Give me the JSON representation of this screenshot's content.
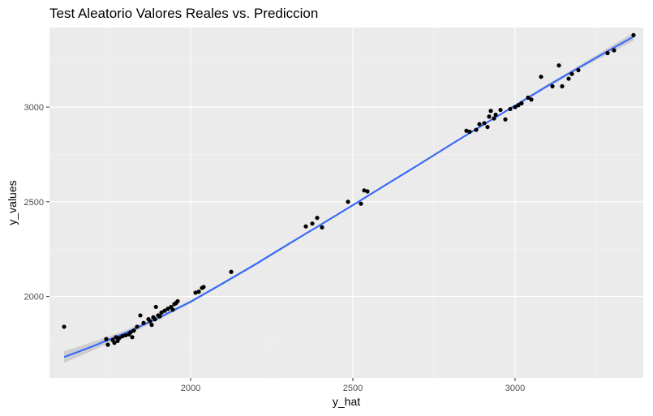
{
  "chart_data": {
    "type": "scatter",
    "title": "Test Aleatorio Valores Reales vs. Prediccion",
    "xlabel": "y_hat",
    "ylabel": "y_values",
    "xlim": [
      1565,
      3395
    ],
    "ylim": [
      1570,
      3420
    ],
    "x_ticks": [
      2000,
      2500,
      3000
    ],
    "y_ticks": [
      2000,
      2500,
      3000
    ],
    "grid": true,
    "legend": "none",
    "colors": {
      "panel": "#ebebeb",
      "grid_major": "#ffffff",
      "grid_minor": "#f4f4f4",
      "points": "#000000",
      "smooth_line": "#3366ff",
      "confidence_band": "#c8c8c8",
      "tick_mark": "#333333"
    },
    "points": [
      [
        1610,
        1840
      ],
      [
        1740,
        1775
      ],
      [
        1745,
        1745
      ],
      [
        1760,
        1770
      ],
      [
        1765,
        1755
      ],
      [
        1770,
        1785
      ],
      [
        1775,
        1765
      ],
      [
        1780,
        1780
      ],
      [
        1790,
        1790
      ],
      [
        1800,
        1795
      ],
      [
        1810,
        1800
      ],
      [
        1815,
        1810
      ],
      [
        1820,
        1785
      ],
      [
        1825,
        1820
      ],
      [
        1835,
        1840
      ],
      [
        1845,
        1900
      ],
      [
        1855,
        1860
      ],
      [
        1870,
        1880
      ],
      [
        1875,
        1870
      ],
      [
        1880,
        1850
      ],
      [
        1885,
        1890
      ],
      [
        1890,
        1880
      ],
      [
        1893,
        1945
      ],
      [
        1900,
        1900
      ],
      [
        1905,
        1895
      ],
      [
        1910,
        1915
      ],
      [
        1920,
        1925
      ],
      [
        1930,
        1935
      ],
      [
        1940,
        1945
      ],
      [
        1945,
        1930
      ],
      [
        1950,
        1960
      ],
      [
        1955,
        1965
      ],
      [
        1960,
        1975
      ],
      [
        2015,
        2020
      ],
      [
        2025,
        2025
      ],
      [
        2035,
        2045
      ],
      [
        2040,
        2050
      ],
      [
        2125,
        2130
      ],
      [
        2355,
        2370
      ],
      [
        2375,
        2385
      ],
      [
        2390,
        2415
      ],
      [
        2405,
        2365
      ],
      [
        2485,
        2500
      ],
      [
        2525,
        2490
      ],
      [
        2535,
        2560
      ],
      [
        2545,
        2555
      ],
      [
        2850,
        2875
      ],
      [
        2860,
        2870
      ],
      [
        2880,
        2880
      ],
      [
        2890,
        2910
      ],
      [
        2905,
        2915
      ],
      [
        2915,
        2895
      ],
      [
        2920,
        2950
      ],
      [
        2925,
        2980
      ],
      [
        2935,
        2940
      ],
      [
        2940,
        2960
      ],
      [
        2955,
        2985
      ],
      [
        2970,
        2935
      ],
      [
        2985,
        2990
      ],
      [
        3000,
        3000
      ],
      [
        3010,
        3010
      ],
      [
        3020,
        3020
      ],
      [
        3040,
        3050
      ],
      [
        3050,
        3040
      ],
      [
        3080,
        3160
      ],
      [
        3115,
        3110
      ],
      [
        3135,
        3220
      ],
      [
        3145,
        3110
      ],
      [
        3165,
        3150
      ],
      [
        3175,
        3175
      ],
      [
        3195,
        3195
      ],
      [
        3285,
        3285
      ],
      [
        3305,
        3300
      ],
      [
        3365,
        3380
      ]
    ],
    "smooth_line": [
      [
        1610,
        1680
      ],
      [
        1700,
        1738
      ],
      [
        1800,
        1808
      ],
      [
        1900,
        1886
      ],
      [
        2000,
        1972
      ],
      [
        2100,
        2070
      ],
      [
        2200,
        2170
      ],
      [
        2300,
        2275
      ],
      [
        2400,
        2378
      ],
      [
        2500,
        2482
      ],
      [
        2600,
        2588
      ],
      [
        2700,
        2693
      ],
      [
        2800,
        2800
      ],
      [
        2900,
        2905
      ],
      [
        3000,
        3008
      ],
      [
        3100,
        3112
      ],
      [
        3200,
        3212
      ],
      [
        3300,
        3310
      ],
      [
        3365,
        3372
      ]
    ],
    "confidence_halfwidth": [
      [
        1610,
        30
      ],
      [
        1800,
        14
      ],
      [
        2000,
        8
      ],
      [
        2500,
        6
      ],
      [
        3000,
        7
      ],
      [
        3200,
        10
      ],
      [
        3365,
        22
      ]
    ]
  }
}
